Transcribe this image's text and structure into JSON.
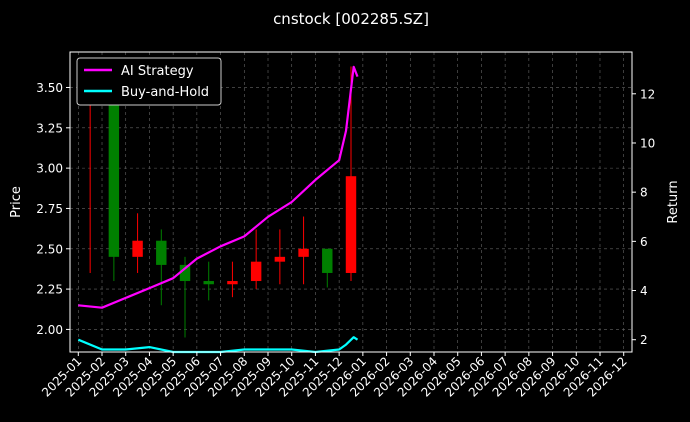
{
  "chart_data": {
    "type": "line",
    "title": "cnstock [002285.SZ]",
    "ylabel_left": "Price",
    "ylabel_right": "Return",
    "xlabel": "",
    "x_ticks": [
      "2025-01",
      "2025-02",
      "2025-03",
      "2025-04",
      "2025-05",
      "2025-06",
      "2025-07",
      "2025-08",
      "2025-09",
      "2025-10",
      "2025-11",
      "2025-12",
      "2026-01",
      "2026-02",
      "2026-03",
      "2026-04",
      "2026-05",
      "2026-06",
      "2026-07",
      "2026-08",
      "2026-09",
      "2026-10",
      "2026-11",
      "2026-12"
    ],
    "y_left_ticks": [
      "2.00",
      "2.25",
      "2.50",
      "2.75",
      "3.00",
      "3.25",
      "3.50"
    ],
    "y_right_ticks": [
      "2",
      "4",
      "6",
      "8",
      "10",
      "12"
    ],
    "y_left_lim": [
      1.86,
      3.72
    ],
    "y_right_lim": [
      1.5,
      13.7
    ],
    "x_lim_months": [
      -0.35,
      23.35
    ],
    "grid": true,
    "legend_position": "top-left",
    "colors": {
      "background": "#000000",
      "ai": "#ff00ff",
      "buyhold": "#00ffff",
      "up": "#ff0000",
      "down": "#008000",
      "grid": "#666666"
    },
    "candlesticks": {
      "description_values": "monthly representative close prices",
      "x": [
        "2025-01",
        "2025-02",
        "2025-03",
        "2025-04",
        "2025-05",
        "2025-06",
        "2025-07",
        "2025-08",
        "2025-09",
        "2025-10",
        "2025-11",
        "2025-12"
      ],
      "close": [
        3.4,
        2.45,
        2.55,
        2.4,
        2.3,
        2.28,
        2.3,
        2.42,
        2.45,
        2.5,
        2.35,
        2.95
      ],
      "high": [
        3.55,
        2.6,
        2.72,
        2.62,
        2.45,
        2.42,
        2.42,
        2.62,
        2.62,
        2.7,
        2.48,
        3.63
      ],
      "low": [
        2.35,
        2.3,
        2.35,
        2.15,
        1.95,
        2.18,
        2.2,
        2.25,
        2.28,
        2.28,
        2.26,
        2.3
      ]
    },
    "series": [
      {
        "name": "AI Strategy",
        "axis": "right",
        "x": [
          "2025-01",
          "2025-02",
          "2025-03",
          "2025-04",
          "2025-05",
          "2025-06",
          "2025-07",
          "2025-08",
          "2025-09",
          "2025-10",
          "2025-11",
          "2025-12-01",
          "2025-12-10",
          "2025-12-20",
          "2025-12-25"
        ],
        "values": [
          3.4,
          3.3,
          3.7,
          4.1,
          4.5,
          5.3,
          5.8,
          6.2,
          7.0,
          7.6,
          8.5,
          9.3,
          10.5,
          13.1,
          12.7
        ]
      },
      {
        "name": "Buy-and-Hold",
        "axis": "right",
        "x": [
          "2025-01",
          "2025-02",
          "2025-03",
          "2025-04",
          "2025-05",
          "2025-06",
          "2025-07",
          "2025-08",
          "2025-09",
          "2025-10",
          "2025-11",
          "2025-12-01",
          "2025-12-10",
          "2025-12-20",
          "2025-12-25"
        ],
        "values": [
          2.0,
          1.6,
          1.6,
          1.7,
          1.5,
          1.5,
          1.5,
          1.6,
          1.6,
          1.6,
          1.5,
          1.6,
          1.8,
          2.1,
          2.0
        ]
      }
    ]
  }
}
